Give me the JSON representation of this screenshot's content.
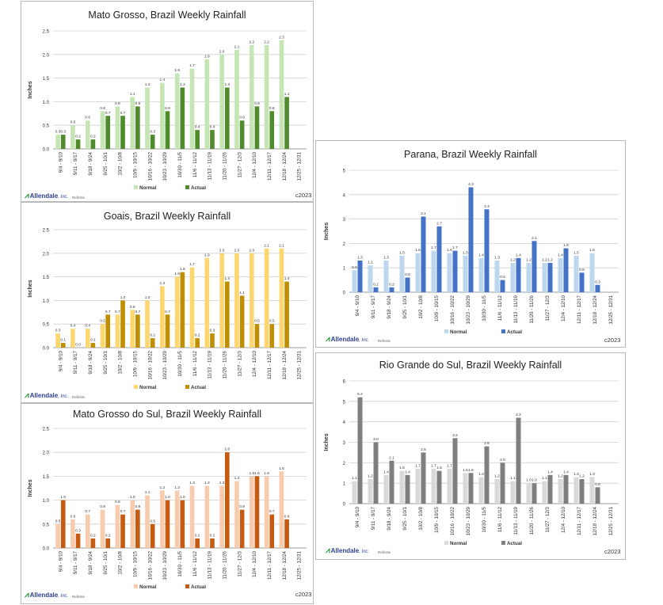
{
  "brand": {
    "name": "Allendale",
    "suffix": ", Inc.",
    "source": "Refinitiv",
    "copyright": "c2023"
  },
  "chart_data": [
    {
      "type": "bar",
      "title": "Mato Grosso, Brazil Weekly Rainfall",
      "ylabel": "Inches",
      "ylim": [
        0,
        2.5
      ],
      "yticks": [
        "0.0",
        "0.5",
        "1.0",
        "1.5",
        "2.0",
        "2.5"
      ],
      "grid": true,
      "legend": "bottom",
      "categories": [
        "9/4 - 9/10",
        "9/11 - 9/17",
        "9/18 - 9/24",
        "9/25 - 10/1",
        "10/2 - 10/8",
        "10/9 - 10/15",
        "10/16 - 10/22",
        "10/23 - 10/29",
        "10/30 - 11/5",
        "11/6 - 11/12",
        "11/13 - 11/19",
        "11/20 - 11/26",
        "11/27 - 12/3",
        "12/4 - 12/10",
        "12/11 - 12/17",
        "12/18 - 12/24",
        "12/25 - 12/31"
      ],
      "series": [
        {
          "name": "Normal",
          "color": "#c6e5b4",
          "values": [
            0.3,
            0.5,
            0.6,
            0.8,
            0.9,
            1.1,
            1.3,
            1.4,
            1.6,
            1.7,
            1.9,
            2.0,
            2.1,
            2.2,
            2.2,
            2.3,
            null
          ]
        },
        {
          "name": "Actual",
          "color": "#4f8a2c",
          "values": [
            0.3,
            0.2,
            0.2,
            0.7,
            0.7,
            0.9,
            0.3,
            0.8,
            1.3,
            0.4,
            0.4,
            1.3,
            0.6,
            0.9,
            0.8,
            1.1,
            null
          ]
        }
      ]
    },
    {
      "type": "bar",
      "title": "Goais, Brazil Weekly Rainfall",
      "ylabel": "Inches",
      "ylim": [
        0,
        2.5
      ],
      "yticks": [
        "0.0",
        "0.5",
        "1.0",
        "1.5",
        "2.0",
        "2.5"
      ],
      "grid": true,
      "legend": "bottom",
      "categories": [
        "9/4 - 9/10",
        "9/11 - 9/17",
        "9/18 - 9/24",
        "9/25 - 10/1",
        "10/2 - 10/8",
        "10/9 - 10/15",
        "10/16 - 10/22",
        "10/23 - 10/29",
        "10/30 - 11/5",
        "11/6 - 11/12",
        "11/13 - 11/19",
        "11/20 - 11/26",
        "11/27 - 12/3",
        "12/4 - 12/10",
        "12/11 - 12/17",
        "12/18 - 12/24",
        "12/25 - 12/31"
      ],
      "series": [
        {
          "name": "Normal",
          "color": "#fdd66f",
          "values": [
            0.3,
            0.4,
            0.4,
            0.5,
            0.7,
            0.8,
            1.0,
            1.3,
            1.5,
            1.7,
            1.9,
            2.0,
            2.0,
            2.0,
            2.1,
            2.1,
            null
          ]
        },
        {
          "name": "Actual",
          "color": "#bf8f00",
          "values": [
            0.1,
            0.0,
            0.1,
            0.7,
            1.0,
            0.7,
            0.2,
            0.7,
            1.6,
            0.2,
            0.3,
            1.4,
            1.1,
            0.5,
            0.5,
            1.4,
            null
          ]
        }
      ]
    },
    {
      "type": "bar",
      "title": "Mato Grosso do Sul, Brazil Weekly Rainfall",
      "ylabel": "Inches",
      "ylim": [
        0,
        2.5
      ],
      "yticks": [
        "0.0",
        "0.5",
        "1.0",
        "1.5",
        "2.0",
        "2.5"
      ],
      "grid": true,
      "legend": "bottom",
      "categories": [
        "9/4 - 9/10",
        "9/11 - 9/17",
        "9/18 - 9/24",
        "9/25 - 10/1",
        "10/2 - 10/8",
        "10/9 - 10/15",
        "10/16 - 10/22",
        "10/23 - 10/29",
        "10/30 - 11/5",
        "11/6 - 11/12",
        "11/13 - 11/19",
        "11/20 - 11/26",
        "11/27 - 12/3",
        "12/4 - 12/10",
        "12/11 - 12/17",
        "12/18 - 12/24",
        "12/25 - 12/31"
      ],
      "series": [
        {
          "name": "Normal",
          "color": "#f8cbad",
          "values": [
            0.5,
            0.6,
            0.7,
            0.8,
            0.9,
            1.0,
            1.1,
            1.2,
            1.2,
            1.3,
            1.3,
            1.3,
            1.4,
            1.5,
            1.5,
            1.6,
            null
          ]
        },
        {
          "name": "Actual",
          "color": "#c55a11",
          "values": [
            1.0,
            0.3,
            0.2,
            0.2,
            0.7,
            0.8,
            0.5,
            1.0,
            1.0,
            0.2,
            0.2,
            2.0,
            0.8,
            1.5,
            0.7,
            0.6,
            null
          ]
        }
      ]
    },
    {
      "type": "bar",
      "title": "Parana, Brazil Weekly Rainfall",
      "ylabel": "Inches",
      "ylim": [
        0,
        5
      ],
      "yticks": [
        "0",
        "1",
        "2",
        "3",
        "4",
        "5"
      ],
      "grid": true,
      "legend": "bottom",
      "categories": [
        "9/4 - 9/10",
        "9/11 - 9/17",
        "9/18 - 9/24",
        "9/25 - 10/1",
        "10/2 - 10/8",
        "10/9 - 10/15",
        "10/16 - 10/22",
        "10/23 - 10/29",
        "10/30 - 11/5",
        "11/6 - 11/12",
        "11/13 - 11/19",
        "11/20 - 11/26",
        "11/27 - 12/3",
        "12/4 - 12/10",
        "12/11 - 12/17",
        "12/18 - 12/24",
        "12/25 - 12/31"
      ],
      "series": [
        {
          "name": "Normal",
          "color": "#bdd7ee",
          "values": [
            0.9,
            1.1,
            1.3,
            1.5,
            1.6,
            1.7,
            1.6,
            1.5,
            1.4,
            1.3,
            1.2,
            1.2,
            1.2,
            1.4,
            1.5,
            1.6,
            null
          ]
        },
        {
          "name": "Actual",
          "color": "#4472c4",
          "values": [
            1.3,
            0.2,
            0.2,
            0.6,
            3.1,
            2.7,
            1.7,
            4.3,
            3.4,
            0.5,
            1.4,
            2.1,
            1.2,
            1.8,
            0.8,
            0.3,
            null
          ]
        }
      ]
    },
    {
      "type": "bar",
      "title": "Rio Grande do Sul, Brazil Weekly Rainfall",
      "ylabel": "Inches",
      "ylim": [
        0,
        6
      ],
      "yticks": [
        "0",
        "1",
        "2",
        "3",
        "4",
        "5",
        "6"
      ],
      "grid": true,
      "legend": "bottom",
      "categories": [
        "9/4 - 9/10",
        "9/11 - 9/17",
        "9/18 - 9/24",
        "9/25 - 10/1",
        "10/2 - 10/8",
        "10/9 - 10/15",
        "10/16 - 10/22",
        "10/23 - 10/29",
        "10/30 - 11/5",
        "11/6 - 11/12",
        "11/13 - 11/19",
        "11/20 - 11/26",
        "11/27 - 12/3",
        "12/4 - 12/10",
        "12/11 - 12/17",
        "12/18 - 12/24",
        "12/25 - 12/31"
      ],
      "series": [
        {
          "name": "Normal",
          "color": "#d9d9d9",
          "values": [
            1.1,
            1.2,
            1.4,
            1.6,
            1.7,
            1.7,
            1.7,
            1.5,
            1.3,
            1.2,
            1.1,
            1.0,
            1.1,
            1.2,
            1.3,
            1.3,
            null
          ]
        },
        {
          "name": "Actual",
          "color": "#7f7f7f",
          "values": [
            5.2,
            3.0,
            2.1,
            1.4,
            2.5,
            1.6,
            3.2,
            1.5,
            2.8,
            2.0,
            4.2,
            1.0,
            1.4,
            1.4,
            1.2,
            0.8,
            null
          ]
        }
      ]
    }
  ]
}
